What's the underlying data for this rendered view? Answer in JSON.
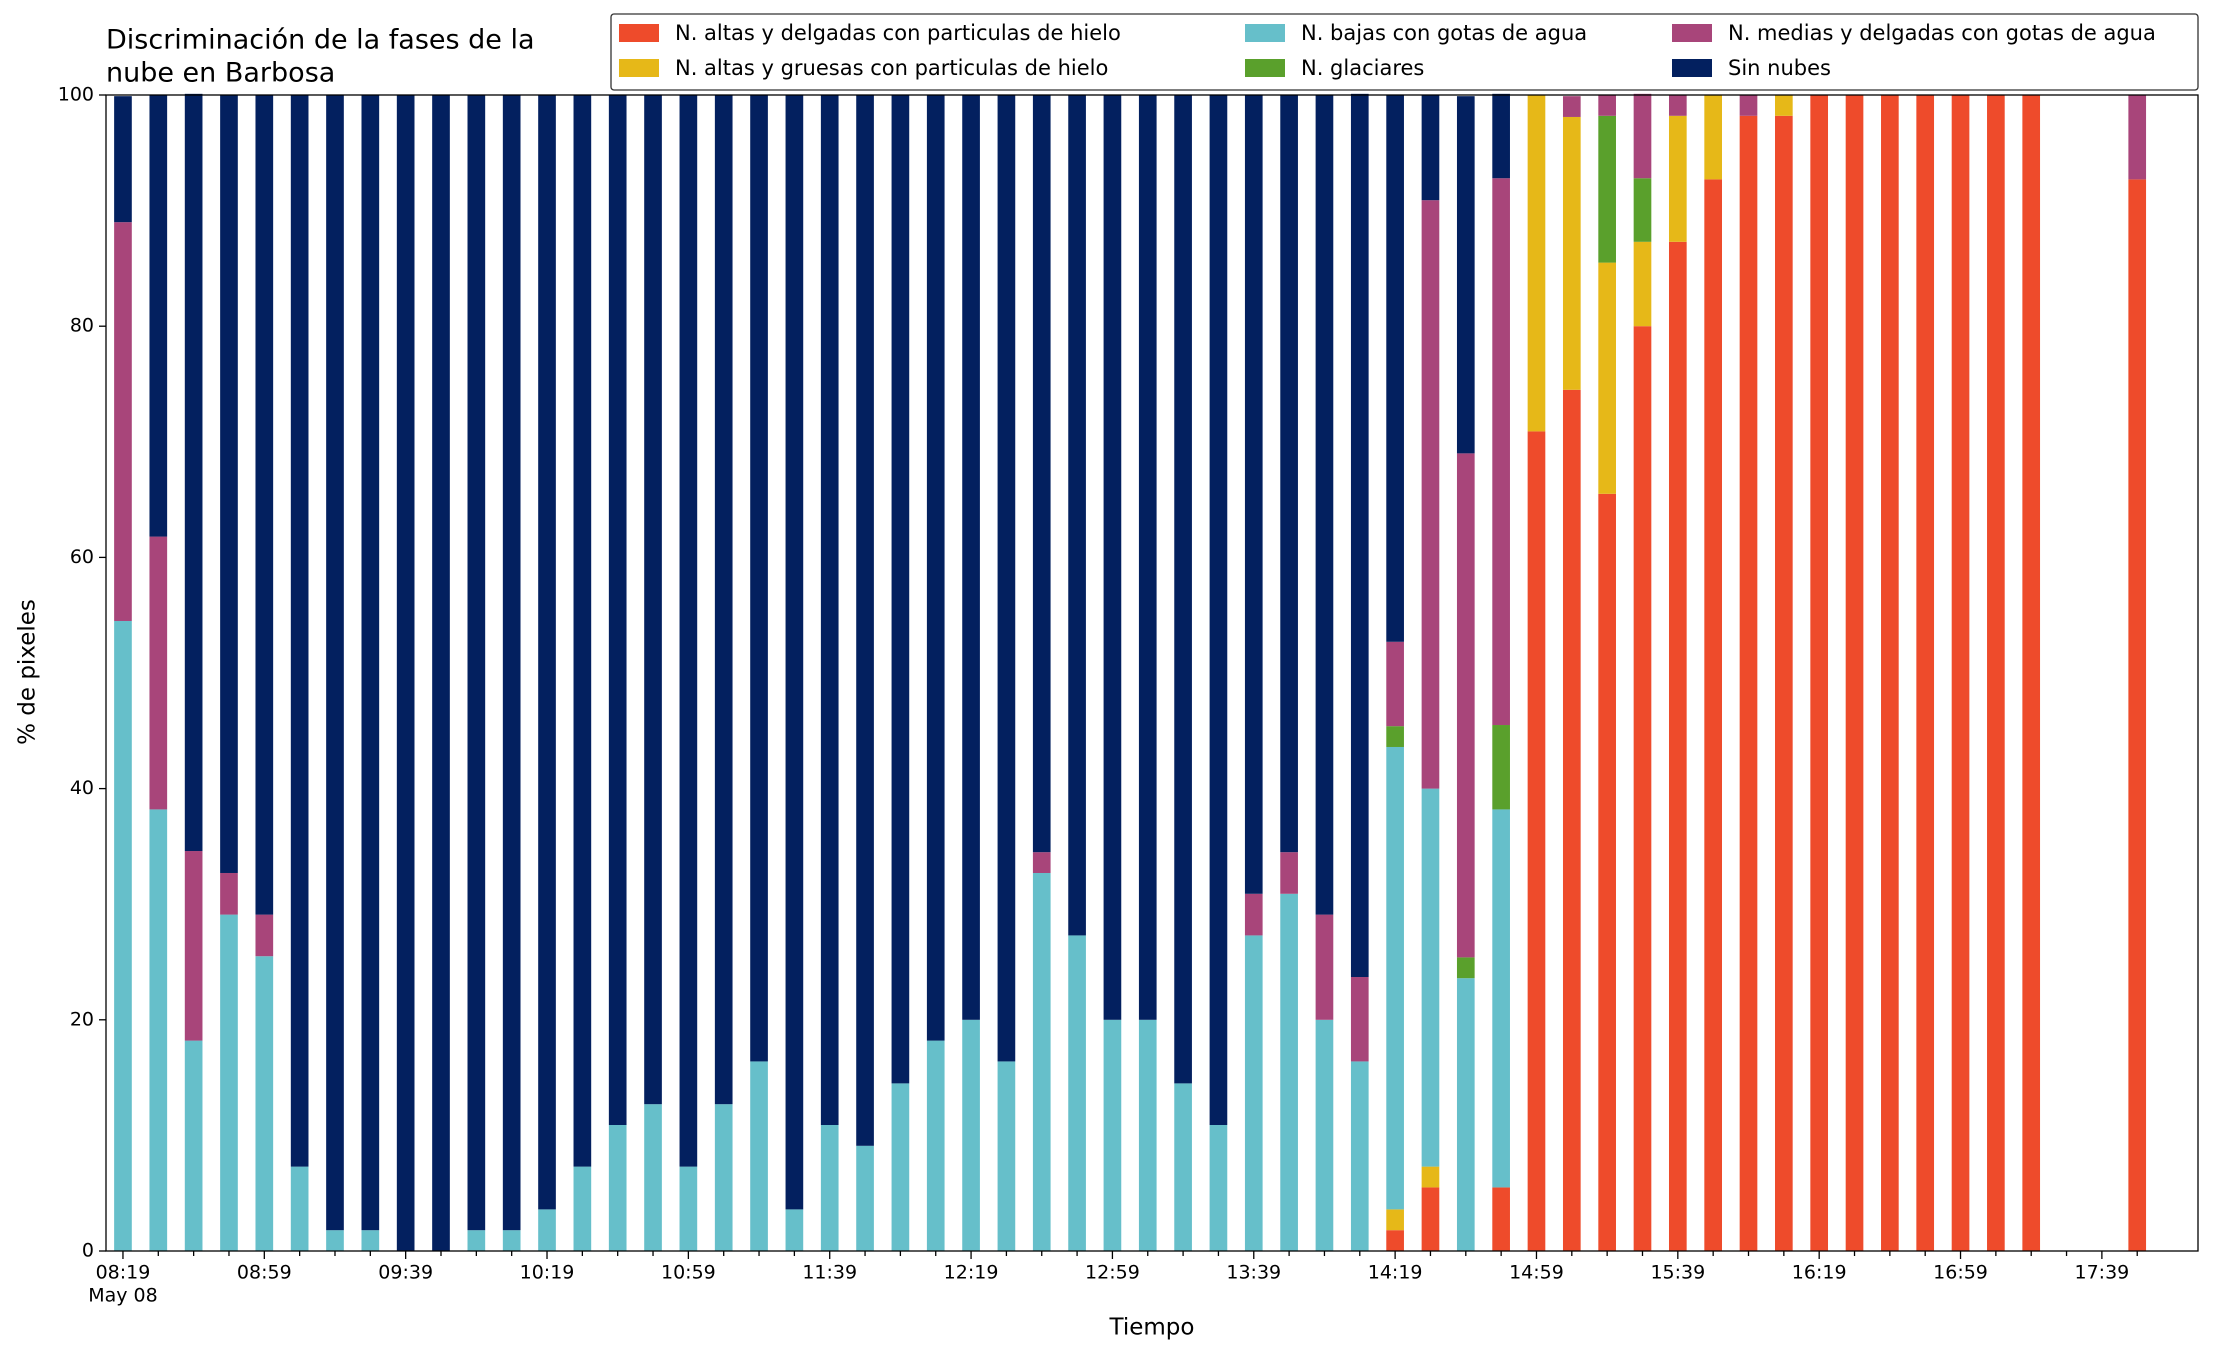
{
  "chart_data": {
    "type": "stacked_bar",
    "title": [
      "Discriminación de la fases de la",
      "nube en Barbosa"
    ],
    "xlabel": "Tiempo",
    "ylabel": "% de pixeles",
    "x_sublabel": "May 08",
    "categories": [
      "08:19",
      null,
      null,
      null,
      "08:59",
      null,
      null,
      null,
      "09:39",
      null,
      null,
      null,
      "10:19",
      null,
      null,
      null,
      "10:59",
      null,
      null,
      null,
      "11:39",
      null,
      null,
      null,
      "12:19",
      null,
      null,
      null,
      "12:59",
      null,
      null,
      null,
      "13:39",
      null,
      null,
      null,
      "14:19",
      null,
      null,
      null,
      "14:59",
      null,
      null,
      null,
      "15:39",
      null,
      null,
      null,
      "16:19",
      null,
      null,
      null,
      "16:59",
      null,
      null,
      null,
      "17:39",
      null
    ],
    "series": [
      {
        "name": "N. altas y delgadas con particulas de hielo",
        "color": "#ee4b2b",
        "values": [
          0,
          0,
          0,
          0,
          0,
          0,
          0,
          0,
          0,
          0,
          0,
          0,
          0,
          0,
          0,
          0,
          0,
          0,
          0,
          0,
          0,
          0,
          0,
          0,
          0,
          0,
          0,
          0,
          0,
          0,
          0,
          0,
          0,
          0,
          0,
          0,
          1.8,
          5.5,
          0,
          5.5,
          70.9,
          74.5,
          65.5,
          80.0,
          87.3,
          92.7,
          98.2,
          98.2,
          100,
          100,
          100,
          100,
          100,
          100,
          100,
          0,
          0,
          92.7
        ]
      },
      {
        "name": "N. altas y gruesas con particulas de hielo",
        "color": "#e6b818",
        "values": [
          0,
          0,
          0,
          0,
          0,
          0,
          0,
          0,
          0,
          0,
          0,
          0,
          0,
          0,
          0,
          0,
          0,
          0,
          0,
          0,
          0,
          0,
          0,
          0,
          0,
          0,
          0,
          0,
          0,
          0,
          0,
          0,
          0,
          0,
          0,
          0,
          1.8,
          1.8,
          0,
          0,
          29.1,
          23.6,
          20.0,
          7.3,
          10.9,
          7.3,
          0,
          1.8,
          0,
          0,
          0,
          0,
          0,
          0,
          0,
          0,
          0,
          0
        ]
      },
      {
        "name": "N. bajas con gotas de agua",
        "color": "#66bfca",
        "values": [
          54.5,
          38.2,
          18.2,
          29.1,
          25.5,
          7.3,
          1.8,
          1.8,
          0,
          0,
          1.8,
          1.8,
          3.6,
          7.3,
          10.9,
          12.7,
          7.3,
          12.7,
          16.4,
          3.6,
          10.9,
          9.1,
          14.5,
          18.2,
          20.0,
          16.4,
          32.7,
          27.3,
          20.0,
          20.0,
          14.5,
          10.9,
          27.3,
          30.9,
          20.0,
          16.4,
          40.0,
          32.7,
          23.6,
          32.7,
          0,
          0,
          0,
          0,
          0,
          0,
          0,
          0,
          0,
          0,
          0,
          0,
          0,
          0,
          0,
          0,
          0,
          0
        ]
      },
      {
        "name": "N. glaciares",
        "color": "#5aa02c",
        "values": [
          0,
          0,
          0,
          0,
          0,
          0,
          0,
          0,
          0,
          0,
          0,
          0,
          0,
          0,
          0,
          0,
          0,
          0,
          0,
          0,
          0,
          0,
          0,
          0,
          0,
          0,
          0,
          0,
          0,
          0,
          0,
          0,
          0,
          0,
          0,
          0,
          1.8,
          0,
          1.8,
          7.3,
          0,
          0,
          12.7,
          5.5,
          0,
          0,
          0,
          0,
          0,
          0,
          0,
          0,
          0,
          0,
          0,
          0,
          0,
          0
        ]
      },
      {
        "name": "N. medias y delgadas con gotas de agua",
        "color": "#a8457a",
        "values": [
          34.5,
          23.6,
          16.4,
          3.6,
          3.6,
          0,
          0,
          0,
          0,
          0,
          0,
          0,
          0,
          0,
          0,
          0,
          0,
          0,
          0,
          0,
          0,
          0,
          0,
          0,
          0,
          0,
          1.8,
          0,
          0,
          0,
          0,
          0,
          3.6,
          3.6,
          9.1,
          7.3,
          7.3,
          50.9,
          43.6,
          47.3,
          0,
          1.8,
          1.8,
          7.3,
          1.8,
          0,
          1.8,
          0,
          0,
          0,
          0,
          0,
          0,
          0,
          0,
          0,
          0,
          7.3
        ]
      },
      {
        "name": "Sin nubes",
        "color": "#03205f",
        "values": [
          10.9,
          38.2,
          65.5,
          67.3,
          70.9,
          92.7,
          98.2,
          98.2,
          100,
          100,
          98.2,
          98.2,
          96.4,
          92.7,
          89.1,
          87.3,
          92.7,
          87.3,
          83.6,
          96.4,
          89.1,
          90.9,
          85.5,
          81.8,
          80.0,
          83.6,
          65.5,
          72.7,
          80.0,
          80.0,
          85.5,
          89.1,
          69.1,
          65.5,
          70.9,
          76.4,
          47.3,
          9.1,
          30.9,
          7.3,
          0,
          0,
          0,
          0,
          0,
          0,
          0,
          0,
          0,
          0,
          0,
          0,
          0,
          0,
          0,
          0,
          0,
          0
        ]
      }
    ],
    "ylim": [
      0,
      100
    ],
    "yticks": [
      0,
      20,
      40,
      60,
      80,
      100
    ],
    "grid": false,
    "legend": "upper right"
  }
}
